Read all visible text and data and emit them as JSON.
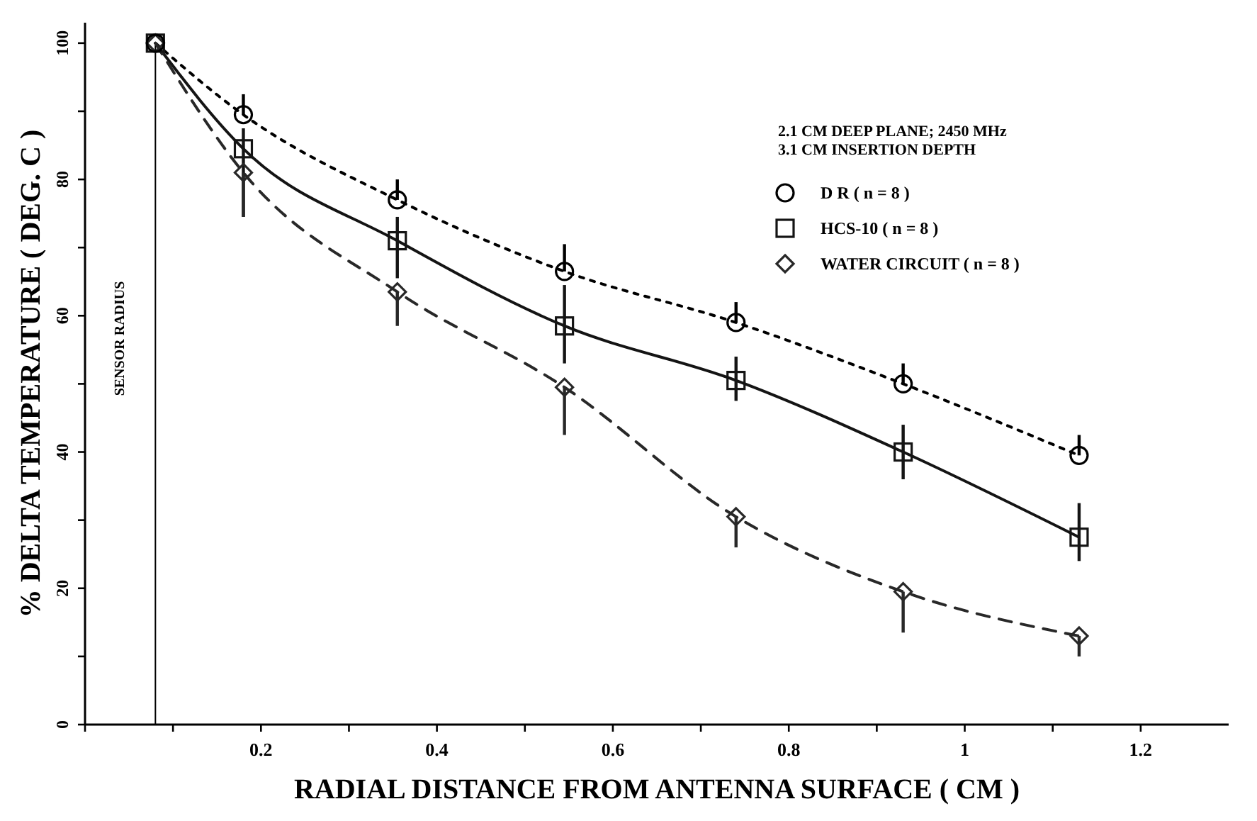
{
  "chart_data": {
    "type": "line",
    "xlabel": "RADIAL DISTANCE FROM ANTENNA SURFACE ( CM )",
    "ylabel": "% DELTA TEMPERATURE ( DEG. C )",
    "legend_title": "2.1 CM DEEP PLANE; 2450 MHz\n3.1 CM INSERTION DEPTH",
    "legend": "top right",
    "grid": false,
    "x": [
      0.08,
      0.18,
      0.355,
      0.545,
      0.74,
      0.93,
      1.13
    ],
    "xlim": [
      0,
      1.3
    ],
    "xticks": [
      {
        "value": 0,
        "label": null
      },
      {
        "value": 0.1,
        "label": null
      },
      0.2,
      {
        "value": 0.3,
        "label": null
      },
      0.4,
      {
        "value": 0.5,
        "label": null
      },
      0.6,
      {
        "value": 0.7,
        "label": null
      },
      0.8,
      {
        "value": 0.9,
        "label": null
      },
      1,
      {
        "value": 1.1,
        "label": null
      },
      1.2
    ],
    "ylim": [
      0,
      103
    ],
    "yticks": [
      0,
      {
        "value": 10,
        "label": null
      },
      20,
      {
        "value": 30,
        "label": null
      },
      40,
      {
        "value": 50,
        "label": null
      },
      60,
      {
        "value": 70,
        "label": null
      },
      80,
      {
        "value": 90,
        "label": null
      },
      100
    ],
    "ref_lines": [
      {
        "axis": "x",
        "value": 0.08,
        "label": "SENSOR RADIUS",
        "color": "#000000"
      }
    ],
    "series": [
      {
        "name": "D R ( n = 8 )",
        "color": "#000000",
        "marker": "circle",
        "line_style": "dotted",
        "values": [
          100,
          89.5,
          77,
          66.5,
          59,
          50,
          39.5
        ],
        "errors": [
          null,
          [
            89.5,
            92.5
          ],
          [
            77,
            80
          ],
          [
            66.5,
            70.5
          ],
          [
            59,
            62
          ],
          [
            50,
            53
          ],
          [
            39.5,
            42.5
          ]
        ]
      },
      {
        "name": "HCS-10 ( n = 8 )",
        "color": "#141414",
        "marker": "square",
        "line_style": "solid",
        "values": [
          100,
          84.5,
          71,
          58.5,
          50.5,
          40,
          27.5
        ],
        "errors": [
          null,
          [
            74.5,
            87.5
          ],
          [
            65.5,
            74.5
          ],
          [
            53,
            64.5
          ],
          [
            47.5,
            54
          ],
          [
            36,
            44
          ],
          [
            24,
            32.5
          ]
        ]
      },
      {
        "name": "WATER CIRCUIT ( n = 8 )",
        "color": "#282828",
        "marker": "diamond",
        "line_style": "dashed",
        "values": [
          100,
          81,
          63.5,
          49.5,
          30.5,
          19.5,
          13
        ],
        "errors": [
          null,
          [
            74.5,
            81
          ],
          [
            58.5,
            63.5
          ],
          [
            42.5,
            49.5
          ],
          [
            26,
            30.5
          ],
          [
            13.5,
            19.5
          ],
          [
            10,
            13
          ]
        ]
      }
    ]
  }
}
